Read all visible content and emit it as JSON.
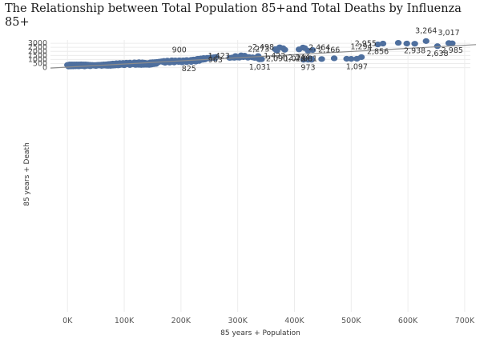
{
  "chart_data": {
    "type": "scatter",
    "title": "The Relationship between Total Population 85+and Total Deaths by Influenza 85+",
    "xlabel": "85 years + Population",
    "ylabel": "85 years + Death",
    "xlim": [
      -30000,
      710000
    ],
    "ylim": [
      -30000,
      3400
    ],
    "x_ticks": [
      0,
      100000,
      200000,
      300000,
      400000,
      500000,
      600000,
      700000
    ],
    "x_tick_labels": [
      "0K",
      "100K",
      "200K",
      "300K",
      "400K",
      "500K",
      "600K",
      "700K"
    ],
    "y_ticks": [
      0,
      500,
      1000,
      1500,
      2000,
      2500,
      3000
    ],
    "y_tick_labels": [
      "0",
      "500",
      "1000",
      "1500",
      "2000",
      "2500",
      "3000"
    ],
    "trend_line": {
      "x": [
        -30000,
        720000
      ],
      "y": [
        -50,
        2830
      ]
    },
    "colors": {
      "point": "#4e6f9e",
      "trend": "#8c8c8c",
      "grid": "#ececec"
    },
    "labeled_points": [
      {
        "x": 632000,
        "y": 3264,
        "label": "3,264"
      },
      {
        "x": 672000,
        "y": 3017,
        "label": "3,017"
      },
      {
        "x": 556000,
        "y": 2955,
        "label": "2,955"
      },
      {
        "x": 678000,
        "y": 2985,
        "label": "2,985"
      },
      {
        "x": 612000,
        "y": 2938,
        "label": "2,938"
      },
      {
        "x": 547000,
        "y": 2856,
        "label": "2,856"
      },
      {
        "x": 652000,
        "y": 2638,
        "label": "2,638"
      },
      {
        "x": 374000,
        "y": 2498,
        "label": "2,498"
      },
      {
        "x": 415000,
        "y": 2464,
        "label": "2,464"
      },
      {
        "x": 408000,
        "y": 2244,
        "label": "2,244"
      },
      {
        "x": 366000,
        "y": 2273,
        "label": "2,273"
      },
      {
        "x": 432000,
        "y": 2166,
        "label": "2,166"
      },
      {
        "x": 369000,
        "y": 2090,
        "label": "2,090"
      },
      {
        "x": 424000,
        "y": 2081,
        "label": "2,081"
      },
      {
        "x": 296000,
        "y": 1423,
        "label": "1,423"
      },
      {
        "x": 336000,
        "y": 1422,
        "label": "1,422"
      },
      {
        "x": 518000,
        "y": 1294,
        "label": "1,294"
      },
      {
        "x": 430000,
        "y": 1078,
        "label": "1,078"
      },
      {
        "x": 510000,
        "y": 1097,
        "label": "1,097"
      },
      {
        "x": 339000,
        "y": 1031,
        "label": "1,031"
      },
      {
        "x": 424000,
        "y": 973,
        "label": "973"
      },
      {
        "x": 197000,
        "y": 900,
        "label": "900"
      },
      {
        "x": 238000,
        "y": 963,
        "label": "963"
      },
      {
        "x": 214000,
        "y": 825,
        "label": "825"
      }
    ],
    "points": [
      [
        583000,
        3050
      ],
      [
        598000,
        2960
      ],
      [
        418000,
        2400
      ],
      [
        383000,
        2200
      ],
      [
        380000,
        2380
      ],
      [
        428000,
        1080
      ],
      [
        448000,
        1060
      ],
      [
        470000,
        1150
      ],
      [
        500000,
        1080
      ],
      [
        492000,
        1090
      ],
      [
        416000,
        970
      ],
      [
        430000,
        975
      ],
      [
        338000,
        1030
      ],
      [
        342000,
        1040
      ],
      [
        306000,
        1510
      ],
      [
        312000,
        1480
      ],
      [
        320000,
        1300
      ],
      [
        326000,
        1260
      ],
      [
        330000,
        1200
      ],
      [
        318000,
        1220
      ],
      [
        310000,
        1290
      ],
      [
        303000,
        1230
      ],
      [
        298000,
        1270
      ],
      [
        290000,
        1240
      ],
      [
        286000,
        1200
      ],
      [
        294000,
        1210
      ],
      [
        300000,
        1250
      ],
      [
        262000,
        1310
      ],
      [
        258000,
        1280
      ],
      [
        252000,
        1250
      ],
      [
        246000,
        1200
      ],
      [
        240000,
        1180
      ],
      [
        235000,
        1130
      ],
      [
        230000,
        1100
      ],
      [
        228000,
        1060
      ],
      [
        236000,
        1040
      ],
      [
        244000,
        1080
      ],
      [
        250000,
        1140
      ],
      [
        254000,
        1200
      ],
      [
        260000,
        1160
      ],
      [
        242000,
        1000
      ],
      [
        222000,
        1000
      ],
      [
        218000,
        960
      ],
      [
        210000,
        940
      ],
      [
        204000,
        900
      ],
      [
        216000,
        880
      ],
      [
        224000,
        860
      ],
      [
        232000,
        820
      ],
      [
        226000,
        740
      ],
      [
        218000,
        700
      ],
      [
        210000,
        680
      ],
      [
        202000,
        660
      ],
      [
        196000,
        700
      ],
      [
        188000,
        640
      ],
      [
        180000,
        620
      ],
      [
        172000,
        600
      ],
      [
        186000,
        760
      ],
      [
        194000,
        800
      ],
      [
        200000,
        840
      ],
      [
        190000,
        880
      ],
      [
        184000,
        900
      ],
      [
        176000,
        860
      ],
      [
        170000,
        820
      ],
      [
        166000,
        780
      ],
      [
        162000,
        740
      ],
      [
        158000,
        700
      ],
      [
        154000,
        680
      ],
      [
        150000,
        660
      ],
      [
        146000,
        640
      ],
      [
        160000,
        660
      ],
      [
        168000,
        700
      ],
      [
        174000,
        740
      ],
      [
        178000,
        790
      ],
      [
        182000,
        720
      ],
      [
        170000,
        670
      ],
      [
        140000,
        560
      ],
      [
        136000,
        600
      ],
      [
        132000,
        640
      ],
      [
        130000,
        520
      ],
      [
        126000,
        560
      ],
      [
        122000,
        600
      ],
      [
        118000,
        540
      ],
      [
        114000,
        500
      ],
      [
        110000,
        470
      ],
      [
        106000,
        520
      ],
      [
        102000,
        560
      ],
      [
        98000,
        500
      ],
      [
        94000,
        460
      ],
      [
        90000,
        420
      ],
      [
        86000,
        440
      ],
      [
        82000,
        400
      ],
      [
        78000,
        380
      ],
      [
        74000,
        360
      ],
      [
        70000,
        340
      ],
      [
        66000,
        330
      ],
      [
        62000,
        310
      ],
      [
        58000,
        300
      ],
      [
        54000,
        280
      ],
      [
        50000,
        260
      ],
      [
        46000,
        250
      ],
      [
        42000,
        240
      ],
      [
        38000,
        230
      ],
      [
        34000,
        220
      ],
      [
        30000,
        210
      ],
      [
        26000,
        200
      ],
      [
        22000,
        190
      ],
      [
        18000,
        180
      ],
      [
        14000,
        170
      ],
      [
        10000,
        160
      ],
      [
        6000,
        150
      ],
      [
        2000,
        140
      ],
      [
        4000,
        400
      ],
      [
        8000,
        390
      ],
      [
        12000,
        380
      ],
      [
        16000,
        370
      ],
      [
        20000,
        360
      ],
      [
        24000,
        350
      ],
      [
        28000,
        340
      ],
      [
        32000,
        330
      ],
      [
        36000,
        320
      ],
      [
        40000,
        310
      ],
      [
        44000,
        300
      ],
      [
        48000,
        290
      ],
      [
        52000,
        280
      ],
      [
        56000,
        270
      ],
      [
        60000,
        260
      ],
      [
        64000,
        250
      ],
      [
        68000,
        240
      ],
      [
        72000,
        230
      ],
      [
        76000,
        220
      ],
      [
        80000,
        250
      ],
      [
        84000,
        270
      ],
      [
        88000,
        290
      ],
      [
        92000,
        320
      ],
      [
        96000,
        350
      ],
      [
        100000,
        380
      ],
      [
        104000,
        410
      ],
      [
        108000,
        440
      ],
      [
        112000,
        470
      ],
      [
        116000,
        500
      ],
      [
        120000,
        520
      ],
      [
        124000,
        480
      ],
      [
        128000,
        440
      ],
      [
        132000,
        410
      ],
      [
        136000,
        380
      ],
      [
        140000,
        360
      ],
      [
        144000,
        340
      ],
      [
        148000,
        380
      ],
      [
        152000,
        420
      ],
      [
        156000,
        460
      ],
      [
        126000,
        660
      ],
      [
        118000,
        640
      ],
      [
        110000,
        620
      ],
      [
        104000,
        600
      ],
      [
        98000,
        580
      ],
      [
        92000,
        560
      ],
      [
        86000,
        540
      ],
      [
        80000,
        510
      ],
      [
        76000,
        470
      ],
      [
        72000,
        440
      ],
      [
        68000,
        410
      ],
      [
        64000,
        390
      ],
      [
        60000,
        370
      ],
      [
        56000,
        350
      ],
      [
        52000,
        330
      ],
      [
        48000,
        320
      ],
      [
        44000,
        330
      ],
      [
        40000,
        350
      ],
      [
        36000,
        370
      ],
      [
        32000,
        390
      ],
      [
        28000,
        400
      ],
      [
        24000,
        410
      ],
      [
        20000,
        400
      ],
      [
        16000,
        390
      ],
      [
        12000,
        380
      ],
      [
        8000,
        360
      ],
      [
        4000,
        340
      ],
      [
        0,
        330
      ],
      [
        2000,
        300
      ],
      [
        6000,
        280
      ],
      [
        10000,
        260
      ],
      [
        14000,
        250
      ],
      [
        18000,
        240
      ],
      [
        22000,
        230
      ],
      [
        26000,
        260
      ],
      [
        30000,
        280
      ],
      [
        34000,
        300
      ],
      [
        38000,
        280
      ],
      [
        42000,
        260
      ],
      [
        46000,
        290
      ],
      [
        50000,
        310
      ],
      [
        54000,
        330
      ],
      [
        58000,
        350
      ],
      [
        62000,
        330
      ],
      [
        66000,
        300
      ],
      [
        70000,
        280
      ],
      [
        74000,
        300
      ],
      [
        78000,
        320
      ],
      [
        82000,
        340
      ],
      [
        86000,
        360
      ],
      [
        90000,
        380
      ],
      [
        94000,
        400
      ],
      [
        98000,
        420
      ],
      [
        102000,
        440
      ],
      [
        106000,
        460
      ],
      [
        110000,
        430
      ],
      [
        114000,
        410
      ],
      [
        118000,
        390
      ],
      [
        122000,
        370
      ],
      [
        126000,
        350
      ],
      [
        130000,
        330
      ],
      [
        134000,
        350
      ],
      [
        138000,
        370
      ],
      [
        142000,
        400
      ],
      [
        146000,
        430
      ],
      [
        150000,
        460
      ],
      [
        154000,
        500
      ],
      [
        20000,
        170
      ],
      [
        30000,
        150
      ],
      [
        40000,
        180
      ],
      [
        50000,
        200
      ],
      [
        60000,
        220
      ],
      [
        70000,
        240
      ],
      [
        80000,
        260
      ],
      [
        90000,
        280
      ],
      [
        100000,
        300
      ],
      [
        110000,
        320
      ],
      [
        120000,
        340
      ],
      [
        130000,
        360
      ],
      [
        140000,
        380
      ]
    ]
  }
}
